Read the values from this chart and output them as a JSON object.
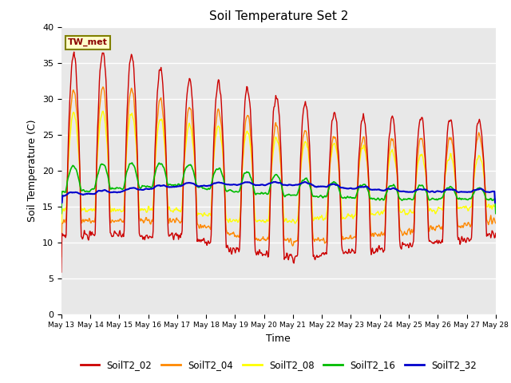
{
  "title": "Soil Temperature Set 2",
  "xlabel": "Time",
  "ylabel": "Soil Temperature (C)",
  "ylim": [
    0,
    40
  ],
  "annotation": "TW_met",
  "background_color": "#e8e8e8",
  "grid_color": "white",
  "series": {
    "SoilT2_02": {
      "color": "#cc0000",
      "lw": 1.0
    },
    "SoilT2_04": {
      "color": "#ff8800",
      "lw": 1.0
    },
    "SoilT2_08": {
      "color": "#ffff00",
      "lw": 1.0
    },
    "SoilT2_16": {
      "color": "#00bb00",
      "lw": 1.2
    },
    "SoilT2_32": {
      "color": "#0000cc",
      "lw": 1.5
    }
  },
  "tick_labels": [
    "May 13",
    "May 14",
    "May 15",
    "May 16",
    "May 17",
    "May 18",
    "May 19",
    "May 20",
    "May 21",
    "May 22",
    "May 23",
    "May 24",
    "May 25",
    "May 26",
    "May 27",
    "May 28"
  ],
  "yticks": [
    0,
    5,
    10,
    15,
    20,
    25,
    30,
    35,
    40
  ]
}
